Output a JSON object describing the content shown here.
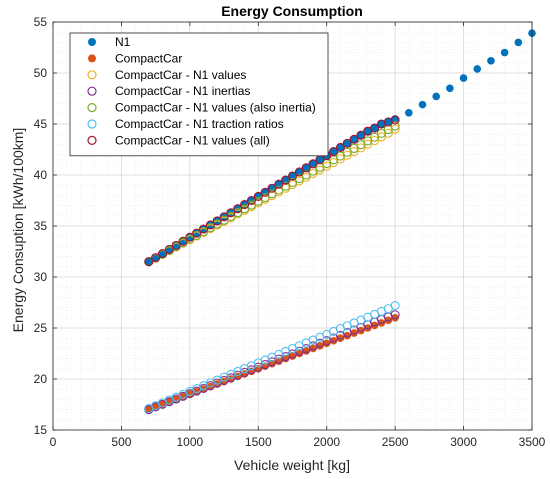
{
  "chart_data": {
    "type": "scatter",
    "title": "Energy Consumption",
    "xlabel": "Vehicle weight [kg]",
    "ylabel": "Energy Consuption [kWh/100km]",
    "xlim": [
      0,
      3500
    ],
    "ylim": [
      15,
      55
    ],
    "xticks": [
      0,
      500,
      1000,
      1500,
      2000,
      2500,
      3000,
      3500
    ],
    "yticks": [
      15,
      20,
      25,
      30,
      35,
      40,
      45,
      50,
      55
    ],
    "grid": true,
    "minor_grid": true,
    "legend_position": "top-left",
    "series": [
      {
        "name": "N1",
        "marker": "filled",
        "color": "#0072BD",
        "x": [
          700,
          750,
          800,
          850,
          900,
          950,
          1000,
          1050,
          1100,
          1150,
          1200,
          1250,
          1300,
          1350,
          1400,
          1450,
          1500,
          1550,
          1600,
          1650,
          1700,
          1750,
          1800,
          1850,
          1900,
          1950,
          2000,
          2050,
          2100,
          2150,
          2200,
          2250,
          2300,
          2350,
          2400,
          2450,
          2500,
          2600,
          2700,
          2800,
          2900,
          3000,
          3100,
          3200,
          3300,
          3400,
          3500
        ],
        "y": [
          31.5,
          31.9,
          32.3,
          32.7,
          33.1,
          33.5,
          33.9,
          34.3,
          34.7,
          35.1,
          35.5,
          35.9,
          36.3,
          36.7,
          37.1,
          37.5,
          37.9,
          38.3,
          38.7,
          39.1,
          39.5,
          39.9,
          40.3,
          40.7,
          41.1,
          41.5,
          41.9,
          42.3,
          42.7,
          43.1,
          43.5,
          43.9,
          44.3,
          44.6,
          45.0,
          45.2,
          45.5,
          46.1,
          46.9,
          47.7,
          48.5,
          49.5,
          50.4,
          51.2,
          52.0,
          53.0,
          53.9
        ]
      },
      {
        "name": "CompactCar",
        "marker": "filled",
        "color": "#D95319",
        "x": [
          700,
          750,
          800,
          850,
          900,
          950,
          1000,
          1050,
          1100,
          1150,
          1200,
          1250,
          1300,
          1350,
          1400,
          1450,
          1500,
          1550,
          1600,
          1650,
          1700,
          1750,
          1800,
          1850,
          1900,
          1950,
          2000,
          2050,
          2100,
          2150,
          2200,
          2250,
          2300,
          2350,
          2400,
          2450,
          2500
        ],
        "y": [
          17.0,
          17.25,
          17.5,
          17.75,
          18.0,
          18.25,
          18.5,
          18.75,
          19.0,
          19.25,
          19.5,
          19.75,
          20.0,
          20.25,
          20.5,
          20.75,
          21.0,
          21.25,
          21.5,
          21.75,
          22.0,
          22.25,
          22.5,
          22.75,
          23.0,
          23.25,
          23.5,
          23.75,
          24.0,
          24.25,
          24.5,
          24.75,
          25.0,
          25.25,
          25.5,
          25.75,
          26.0
        ]
      },
      {
        "name": "CompactCar - N1 values",
        "marker": "open",
        "color": "#EDB120",
        "x": [
          700,
          750,
          800,
          850,
          900,
          950,
          1000,
          1050,
          1100,
          1150,
          1200,
          1250,
          1300,
          1350,
          1400,
          1450,
          1500,
          1550,
          1600,
          1650,
          1700,
          1750,
          1800,
          1850,
          1900,
          1950,
          2000,
          2050,
          2100,
          2150,
          2200,
          2250,
          2300,
          2350,
          2400,
          2450,
          2500
        ],
        "y": [
          31.5,
          31.86,
          32.22,
          32.58,
          32.94,
          33.3,
          33.66,
          34.02,
          34.38,
          34.74,
          35.1,
          35.46,
          35.82,
          36.18,
          36.54,
          36.9,
          37.26,
          37.62,
          37.98,
          38.34,
          38.7,
          39.06,
          39.42,
          39.78,
          40.14,
          40.5,
          40.86,
          41.22,
          41.58,
          41.94,
          42.3,
          42.66,
          43.02,
          43.38,
          43.74,
          44.1,
          44.5
        ]
      },
      {
        "name": "CompactCar - N1 inertias",
        "marker": "open",
        "color": "#7E2F8E",
        "x": [
          700,
          750,
          800,
          850,
          900,
          950,
          1000,
          1050,
          1100,
          1150,
          1200,
          1250,
          1300,
          1350,
          1400,
          1450,
          1500,
          1550,
          1600,
          1650,
          1700,
          1750,
          1800,
          1850,
          1900,
          1950,
          2000,
          2050,
          2100,
          2150,
          2200,
          2250,
          2300,
          2350,
          2400,
          2450,
          2500
        ],
        "y": [
          17.0,
          17.26,
          17.52,
          17.78,
          18.04,
          18.3,
          18.56,
          18.82,
          19.08,
          19.34,
          19.6,
          19.86,
          20.12,
          20.38,
          20.64,
          20.9,
          21.16,
          21.42,
          21.68,
          21.94,
          22.2,
          22.46,
          22.72,
          22.98,
          23.24,
          23.5,
          23.76,
          24.02,
          24.28,
          24.54,
          24.8,
          25.06,
          25.32,
          25.58,
          25.84,
          26.1,
          26.3
        ]
      },
      {
        "name": "CompactCar - N1 values (also inertia)",
        "marker": "open",
        "color": "#77AC30",
        "x": [
          700,
          750,
          800,
          850,
          900,
          950,
          1000,
          1050,
          1100,
          1150,
          1200,
          1250,
          1300,
          1350,
          1400,
          1450,
          1500,
          1550,
          1600,
          1650,
          1700,
          1750,
          1800,
          1850,
          1900,
          1950,
          2000,
          2050,
          2100,
          2150,
          2200,
          2250,
          2300,
          2350,
          2400,
          2450,
          2500
        ],
        "y": [
          31.5,
          31.87,
          32.24,
          32.61,
          32.98,
          33.35,
          33.72,
          34.09,
          34.46,
          34.83,
          35.2,
          35.57,
          35.94,
          36.31,
          36.68,
          37.05,
          37.42,
          37.79,
          38.16,
          38.53,
          38.9,
          39.27,
          39.64,
          40.01,
          40.38,
          40.75,
          41.12,
          41.49,
          41.86,
          42.23,
          42.6,
          42.97,
          43.34,
          43.71,
          44.08,
          44.45,
          44.8
        ]
      },
      {
        "name": "CompactCar - N1 traction ratios",
        "marker": "open",
        "color": "#4DBEEE",
        "x": [
          700,
          750,
          800,
          850,
          900,
          950,
          1000,
          1050,
          1100,
          1150,
          1200,
          1250,
          1300,
          1350,
          1400,
          1450,
          1500,
          1550,
          1600,
          1650,
          1700,
          1750,
          1800,
          1850,
          1900,
          1950,
          2000,
          2050,
          2100,
          2150,
          2200,
          2250,
          2300,
          2350,
          2400,
          2450,
          2500
        ],
        "y": [
          17.1,
          17.38,
          17.66,
          17.94,
          18.22,
          18.5,
          18.78,
          19.06,
          19.34,
          19.62,
          19.9,
          20.18,
          20.46,
          20.74,
          21.02,
          21.3,
          21.58,
          21.86,
          22.14,
          22.42,
          22.7,
          22.98,
          23.26,
          23.54,
          23.82,
          24.1,
          24.38,
          24.66,
          24.94,
          25.22,
          25.5,
          25.78,
          26.06,
          26.34,
          26.62,
          26.9,
          27.2
        ]
      },
      {
        "name": "CompactCar - N1 values (all)",
        "marker": "open",
        "color": "#A2142F",
        "x": [
          700,
          750,
          800,
          850,
          900,
          950,
          1000,
          1050,
          1100,
          1150,
          1200,
          1250,
          1300,
          1350,
          1400,
          1450,
          1500,
          1550,
          1600,
          1650,
          1700,
          1750,
          1800,
          1850,
          1900,
          1950,
          2000,
          2050,
          2100,
          2150,
          2200,
          2250,
          2300,
          2350,
          2400,
          2450,
          2500
        ],
        "y": [
          31.5,
          31.9,
          32.3,
          32.7,
          33.1,
          33.5,
          33.9,
          34.3,
          34.7,
          35.1,
          35.5,
          35.9,
          36.3,
          36.7,
          37.1,
          37.5,
          37.9,
          38.3,
          38.7,
          39.1,
          39.5,
          39.9,
          40.3,
          40.7,
          41.1,
          41.5,
          41.9,
          42.3,
          42.7,
          43.1,
          43.5,
          43.9,
          44.3,
          44.6,
          45.0,
          45.2,
          45.4
        ]
      }
    ]
  }
}
